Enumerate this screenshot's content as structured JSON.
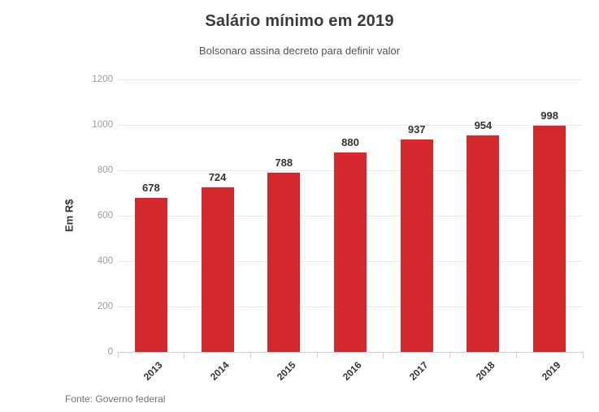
{
  "header": {
    "title": "Salário mínimo em 2019",
    "subtitle": "Bolsonaro assina decreto para definir valor"
  },
  "footer": {
    "source": "Fonte: Governo federal"
  },
  "colors": {
    "bar": "#d4292c",
    "title": "#3a3a3a",
    "subtitle": "#5a4e4e",
    "value_label": "#333333",
    "tick_label": "#9b9b9b",
    "gridline": "#e7e9ea",
    "axis_line": "#c8d2d8",
    "source": "#707070"
  },
  "chart_data": {
    "type": "bar",
    "title": "Salário mínimo em 2019",
    "subtitle": "Bolsonaro assina decreto para definir valor",
    "categories": [
      "2013",
      "2014",
      "2015",
      "2016",
      "2017",
      "2018",
      "2019"
    ],
    "values": [
      678,
      724,
      788,
      880,
      937,
      954,
      998
    ],
    "xlabel": "",
    "ylabel": "Em R$",
    "ylim": [
      0,
      1200
    ],
    "yticks": [
      0,
      200,
      400,
      600,
      800,
      1000,
      1200
    ],
    "grid": true,
    "legend": false,
    "bar_color": "#d4292c",
    "value_labels_shown": true,
    "x_labels_rotation_deg": -45,
    "source": "Fonte: Governo federal"
  }
}
